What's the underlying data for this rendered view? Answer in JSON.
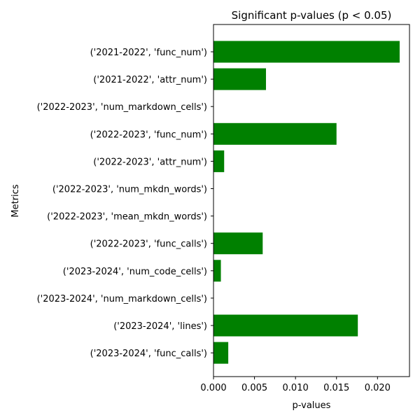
{
  "chart_data": {
    "type": "bar",
    "orientation": "horizontal",
    "title": "Significant p-values (p < 0.05)",
    "xlabel": "p-values",
    "ylabel": "Metrics",
    "categories": [
      "('2021-2022', 'func_num')",
      "('2021-2022', 'attr_num')",
      "('2022-2023', 'num_markdown_cells')",
      "('2022-2023', 'func_num')",
      "('2022-2023', 'attr_num')",
      "('2022-2023', 'num_mkdn_words')",
      "('2022-2023', 'mean_mkdn_words')",
      "('2022-2023', 'func_calls')",
      "('2023-2024', 'num_code_cells')",
      "('2023-2024', 'num_markdown_cells')",
      "('2023-2024', 'lines')",
      "('2023-2024', 'func_calls')"
    ],
    "values": [
      0.0227,
      0.0064,
      1e-05,
      0.015,
      0.0013,
      1e-06,
      2e-06,
      0.006,
      0.0009,
      1e-05,
      0.0176,
      0.0018
    ],
    "xlim": [
      0,
      0.0239
    ],
    "xticks": [
      0.0,
      0.005,
      0.01,
      0.015,
      0.02
    ],
    "xtick_labels": [
      "0.000",
      "0.005",
      "0.010",
      "0.015",
      "0.020"
    ],
    "bar_color": "#008000",
    "grid": false
  }
}
